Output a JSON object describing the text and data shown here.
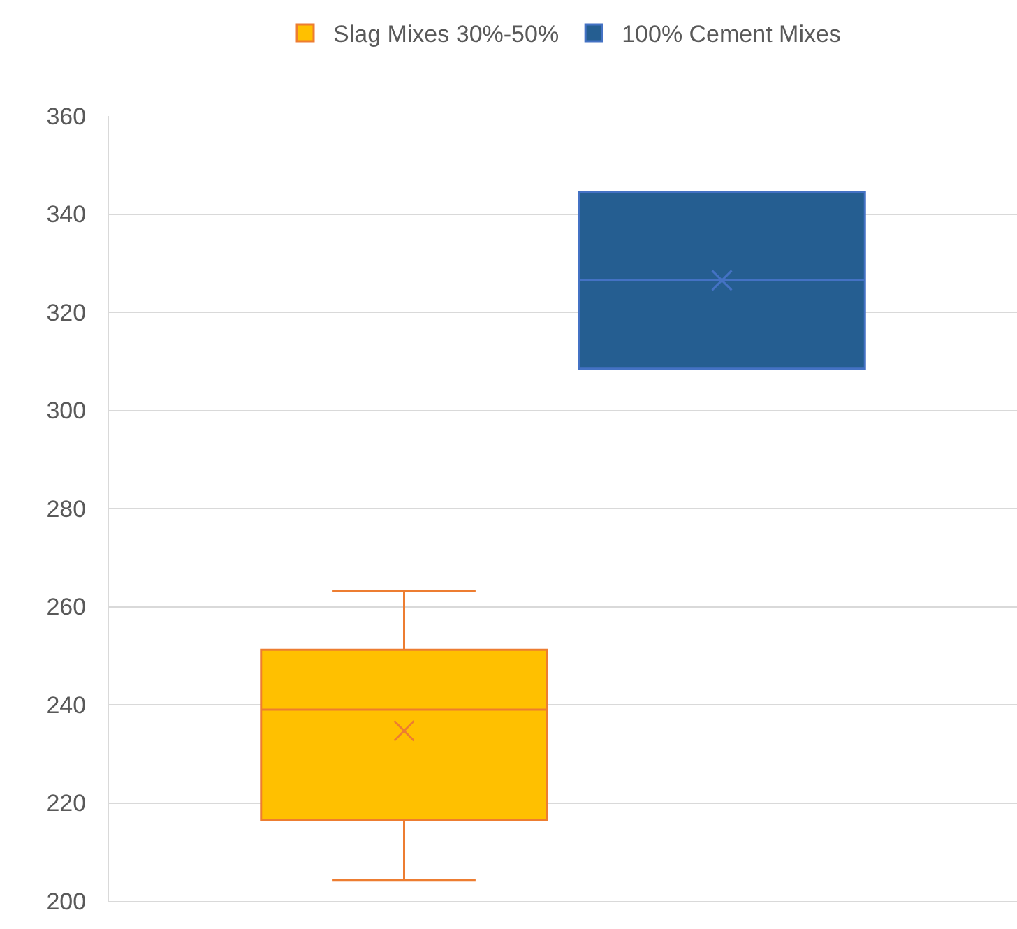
{
  "chart_data": {
    "type": "box",
    "categories": [
      null
    ],
    "series": [
      {
        "name": "Slag Mixes 30%-50%",
        "color": "#ffc000",
        "boxes": [
          {
            "low": 204.3,
            "q1": 216.5,
            "median": 239,
            "q3": 251.2,
            "high": 263.2,
            "mean": 234.7
          }
        ]
      },
      {
        "name": "100% Cement Mixes",
        "color": "#255e91",
        "boxes": [
          {
            "low": 308.5,
            "q1": 308.5,
            "median": 326.5,
            "q3": 344.5,
            "high": 344.5,
            "mean": 326.5
          }
        ]
      }
    ],
    "ylim": [
      200,
      360
    ],
    "yticks": [
      200,
      220,
      240,
      260,
      280,
      300,
      320,
      340,
      360
    ],
    "grid": "y",
    "legend": "top",
    "marker": "cross"
  }
}
